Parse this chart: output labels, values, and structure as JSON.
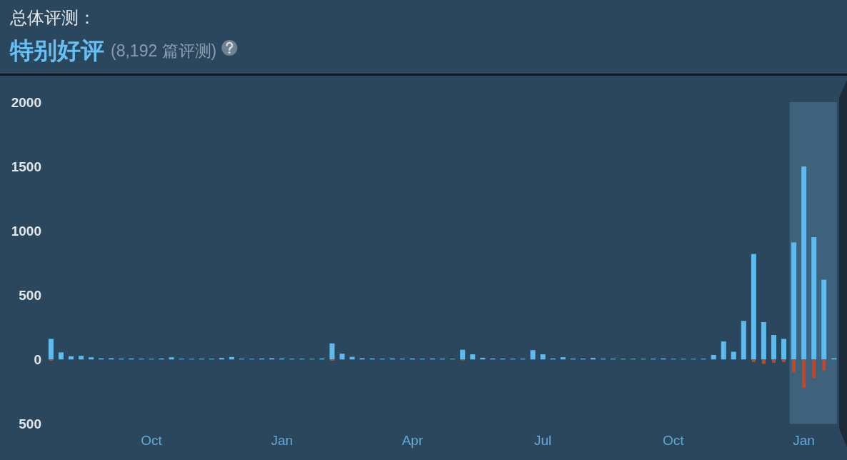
{
  "chart_data": {
    "type": "bar",
    "title": "总体评测：",
    "subtitle": "特别好评",
    "annotations": [
      "(8,192 篇评测)"
    ],
    "categories": [
      null,
      null,
      null,
      null,
      null,
      null,
      null,
      null,
      null,
      null,
      "Oct",
      null,
      null,
      null,
      null,
      null,
      null,
      null,
      null,
      null,
      null,
      null,
      null,
      "Jan",
      null,
      null,
      null,
      null,
      null,
      null,
      null,
      null,
      null,
      null,
      null,
      null,
      "Apr",
      null,
      null,
      null,
      null,
      null,
      null,
      null,
      null,
      null,
      null,
      null,
      null,
      "Jul",
      null,
      null,
      null,
      null,
      null,
      null,
      null,
      null,
      null,
      null,
      null,
      null,
      "Oct",
      null,
      null,
      null,
      null,
      null,
      null,
      null,
      null,
      null,
      null,
      null,
      null,
      "Jan",
      null,
      null,
      null
    ],
    "series": [
      {
        "color": "#5fbbee",
        "values": [
          160,
          55,
          25,
          28,
          17,
          9,
          10,
          7,
          8,
          6,
          5,
          8,
          17,
          6,
          5,
          6,
          6,
          12,
          19,
          6,
          5,
          8,
          10,
          8,
          6,
          6,
          5,
          8,
          125,
          45,
          20,
          10,
          8,
          6,
          8,
          6,
          8,
          6,
          8,
          6,
          5,
          75,
          40,
          13,
          8,
          7,
          6,
          6,
          72,
          40,
          8,
          17,
          7,
          7,
          12,
          6,
          6,
          5,
          5,
          5,
          6,
          8,
          5,
          5,
          5,
          6,
          35,
          140,
          60,
          300,
          820,
          290,
          190,
          160,
          910,
          1500,
          950,
          620,
          10
        ]
      },
      {
        "color": "#c9441f",
        "values": [
          -10,
          null,
          null,
          null,
          null,
          null,
          null,
          null,
          null,
          null,
          null,
          null,
          null,
          null,
          null,
          null,
          null,
          null,
          null,
          null,
          null,
          null,
          null,
          null,
          null,
          null,
          null,
          null,
          -10,
          null,
          null,
          null,
          null,
          null,
          null,
          null,
          null,
          null,
          null,
          null,
          null,
          -8,
          null,
          null,
          null,
          null,
          null,
          null,
          null,
          null,
          null,
          null,
          null,
          null,
          null,
          null,
          null,
          null,
          null,
          null,
          null,
          null,
          null,
          null,
          null,
          null,
          null,
          null,
          null,
          null,
          -20,
          -35,
          -25,
          -20,
          -100,
          -220,
          -145,
          -85,
          null
        ]
      }
    ],
    "stacked": true,
    "ylim": [
      -500,
      2000
    ],
    "yticks": [
      2000,
      1500,
      1000,
      500,
      0,
      {
        "value": -500,
        "label": "500"
      }
    ]
  }
}
